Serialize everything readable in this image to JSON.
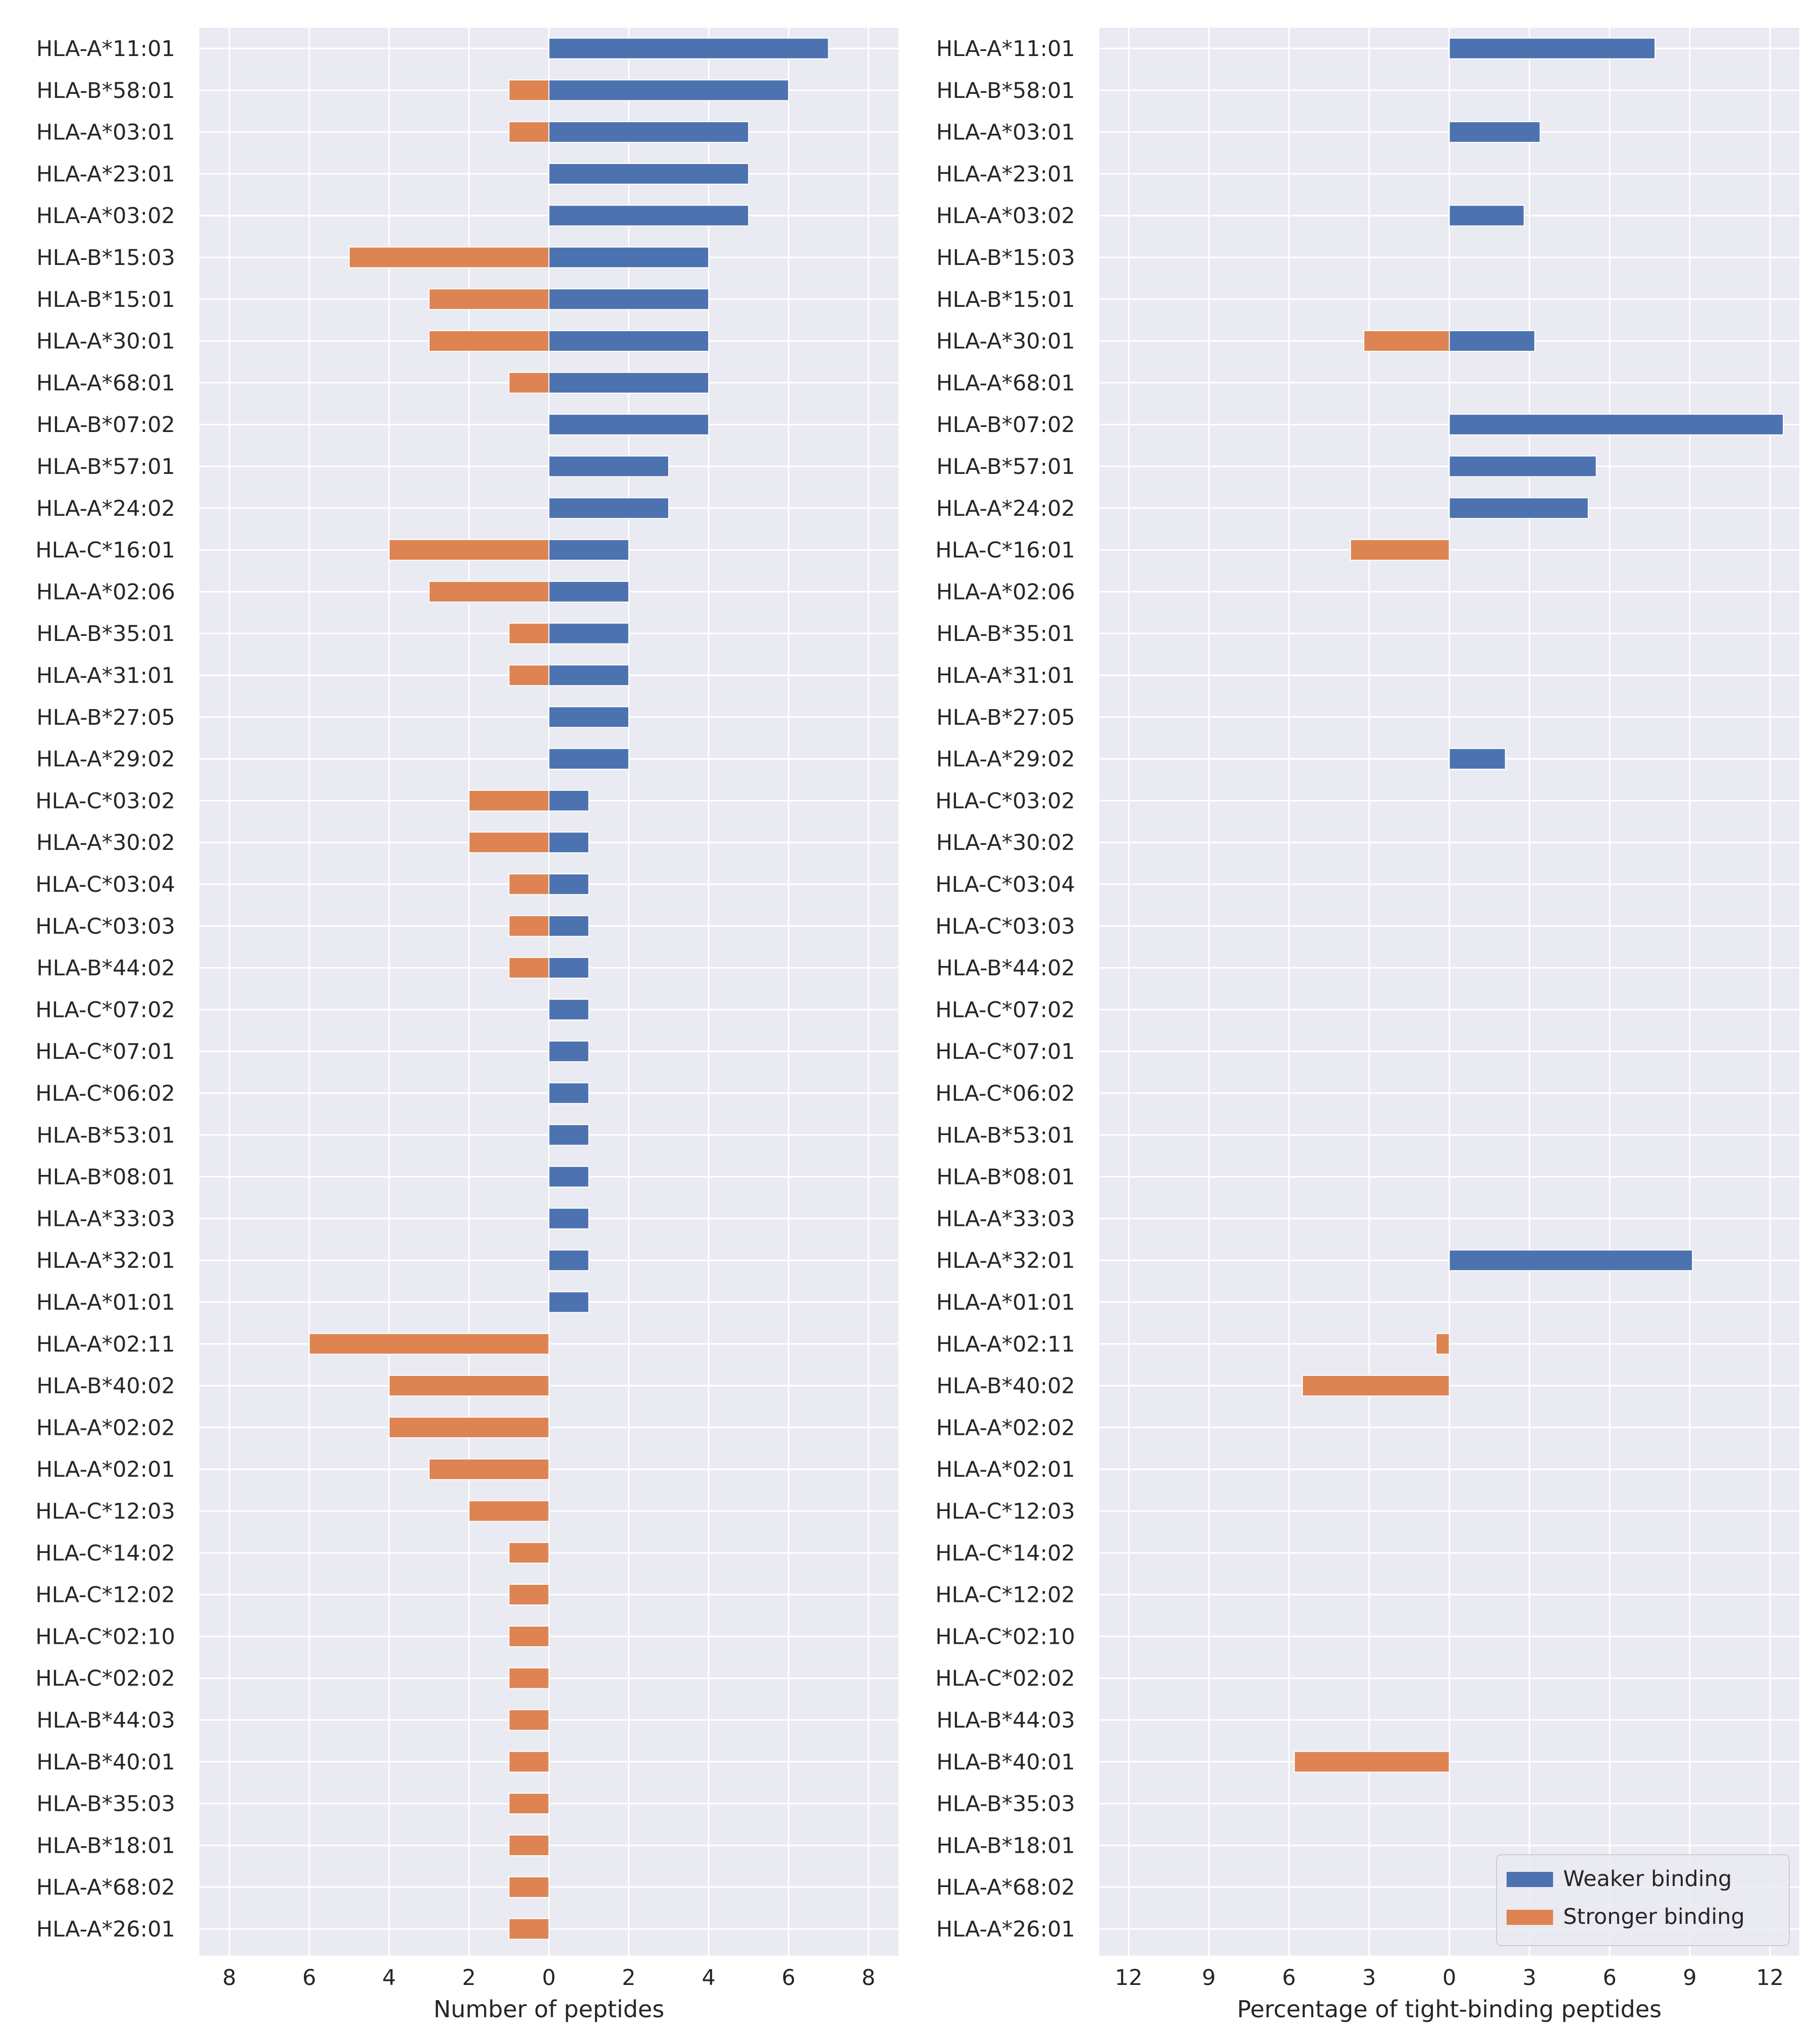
{
  "chart_data": [
    {
      "type": "bar",
      "orientation": "horizontal",
      "stacked": "diverging",
      "xlabel": "Number of peptides",
      "xlim": [
        -8.75,
        8.75
      ],
      "xticks": [
        -8,
        -6,
        -4,
        -2,
        0,
        2,
        4,
        6,
        8
      ],
      "xtick_labels": [
        "8",
        "6",
        "4",
        "2",
        "0",
        "2",
        "4",
        "6",
        "8"
      ],
      "grid": true,
      "categories": [
        "HLA-A*11:01",
        "HLA-B*58:01",
        "HLA-A*03:01",
        "HLA-A*23:01",
        "HLA-A*03:02",
        "HLA-B*15:03",
        "HLA-B*15:01",
        "HLA-A*30:01",
        "HLA-A*68:01",
        "HLA-B*07:02",
        "HLA-B*57:01",
        "HLA-A*24:02",
        "HLA-C*16:01",
        "HLA-A*02:06",
        "HLA-B*35:01",
        "HLA-A*31:01",
        "HLA-B*27:05",
        "HLA-A*29:02",
        "HLA-C*03:02",
        "HLA-A*30:02",
        "HLA-C*03:04",
        "HLA-C*03:03",
        "HLA-B*44:02",
        "HLA-C*07:02",
        "HLA-C*07:01",
        "HLA-C*06:02",
        "HLA-B*53:01",
        "HLA-B*08:01",
        "HLA-A*33:03",
        "HLA-A*32:01",
        "HLA-A*01:01",
        "HLA-A*02:11",
        "HLA-B*40:02",
        "HLA-A*02:02",
        "HLA-A*02:01",
        "HLA-C*12:03",
        "HLA-C*14:02",
        "HLA-C*12:02",
        "HLA-C*02:10",
        "HLA-C*02:02",
        "HLA-B*44:03",
        "HLA-B*40:01",
        "HLA-B*35:03",
        "HLA-B*18:01",
        "HLA-A*68:02",
        "HLA-A*26:01"
      ],
      "series": [
        {
          "name": "Weaker binding",
          "color": "#4c72b0",
          "values": [
            7,
            6,
            5,
            5,
            5,
            4,
            4,
            4,
            4,
            4,
            3,
            3,
            2,
            2,
            2,
            2,
            2,
            2,
            1,
            1,
            1,
            1,
            1,
            1,
            1,
            1,
            1,
            1,
            1,
            1,
            1,
            0,
            0,
            0,
            0,
            0,
            0,
            0,
            0,
            0,
            0,
            0,
            0,
            0,
            0,
            0
          ]
        },
        {
          "name": "Stronger binding",
          "color": "#dd8452",
          "values": [
            0,
            1,
            1,
            0,
            0,
            5,
            3,
            3,
            1,
            0,
            0,
            0,
            4,
            3,
            1,
            1,
            0,
            0,
            2,
            2,
            1,
            1,
            1,
            0,
            0,
            0,
            0,
            0,
            0,
            0,
            0,
            6,
            4,
            4,
            3,
            2,
            1,
            1,
            1,
            1,
            1,
            1,
            1,
            1,
            1,
            1
          ]
        }
      ]
    },
    {
      "type": "bar",
      "orientation": "horizontal",
      "stacked": "diverging",
      "xlabel": "Percentage of tight-binding peptides",
      "xlim": [
        -13.1,
        13.1
      ],
      "xticks": [
        -12,
        -9,
        -6,
        -3,
        0,
        3,
        6,
        9,
        12
      ],
      "xtick_labels": [
        "12",
        "9",
        "6",
        "3",
        "0",
        "3",
        "6",
        "9",
        "12"
      ],
      "grid": true,
      "legend": {
        "placement": "lower-right",
        "entries": [
          "Weaker binding",
          "Stronger binding"
        ]
      },
      "categories": [
        "HLA-A*11:01",
        "HLA-B*58:01",
        "HLA-A*03:01",
        "HLA-A*23:01",
        "HLA-A*03:02",
        "HLA-B*15:03",
        "HLA-B*15:01",
        "HLA-A*30:01",
        "HLA-A*68:01",
        "HLA-B*07:02",
        "HLA-B*57:01",
        "HLA-A*24:02",
        "HLA-C*16:01",
        "HLA-A*02:06",
        "HLA-B*35:01",
        "HLA-A*31:01",
        "HLA-B*27:05",
        "HLA-A*29:02",
        "HLA-C*03:02",
        "HLA-A*30:02",
        "HLA-C*03:04",
        "HLA-C*03:03",
        "HLA-B*44:02",
        "HLA-C*07:02",
        "HLA-C*07:01",
        "HLA-C*06:02",
        "HLA-B*53:01",
        "HLA-B*08:01",
        "HLA-A*33:03",
        "HLA-A*32:01",
        "HLA-A*01:01",
        "HLA-A*02:11",
        "HLA-B*40:02",
        "HLA-A*02:02",
        "HLA-A*02:01",
        "HLA-C*12:03",
        "HLA-C*14:02",
        "HLA-C*12:02",
        "HLA-C*02:10",
        "HLA-C*02:02",
        "HLA-B*44:03",
        "HLA-B*40:01",
        "HLA-B*35:03",
        "HLA-B*18:01",
        "HLA-A*68:02",
        "HLA-A*26:01"
      ],
      "series": [
        {
          "name": "Weaker binding",
          "color": "#4c72b0",
          "values": [
            7.7,
            0,
            3.4,
            0,
            2.8,
            0,
            0,
            3.2,
            0,
            12.5,
            5.5,
            5.2,
            0,
            0,
            0,
            0,
            0,
            2.1,
            0,
            0,
            0,
            0,
            0,
            0,
            0,
            0,
            0,
            0,
            0,
            9.1,
            0,
            0,
            0,
            0,
            0,
            0,
            0,
            0,
            0,
            0,
            0,
            0,
            0,
            0,
            0,
            0
          ]
        },
        {
          "name": "Stronger binding",
          "color": "#dd8452",
          "values": [
            0,
            0,
            0,
            0,
            0,
            0,
            0,
            3.2,
            0,
            0,
            0,
            0,
            3.7,
            0,
            0,
            0,
            0,
            0,
            0,
            0,
            0,
            0,
            0,
            0,
            0,
            0,
            0,
            0,
            0,
            0,
            0,
            0.5,
            5.5,
            0,
            0,
            0,
            0,
            0,
            0,
            0,
            0,
            5.8,
            0,
            0,
            0,
            0
          ]
        }
      ]
    }
  ]
}
